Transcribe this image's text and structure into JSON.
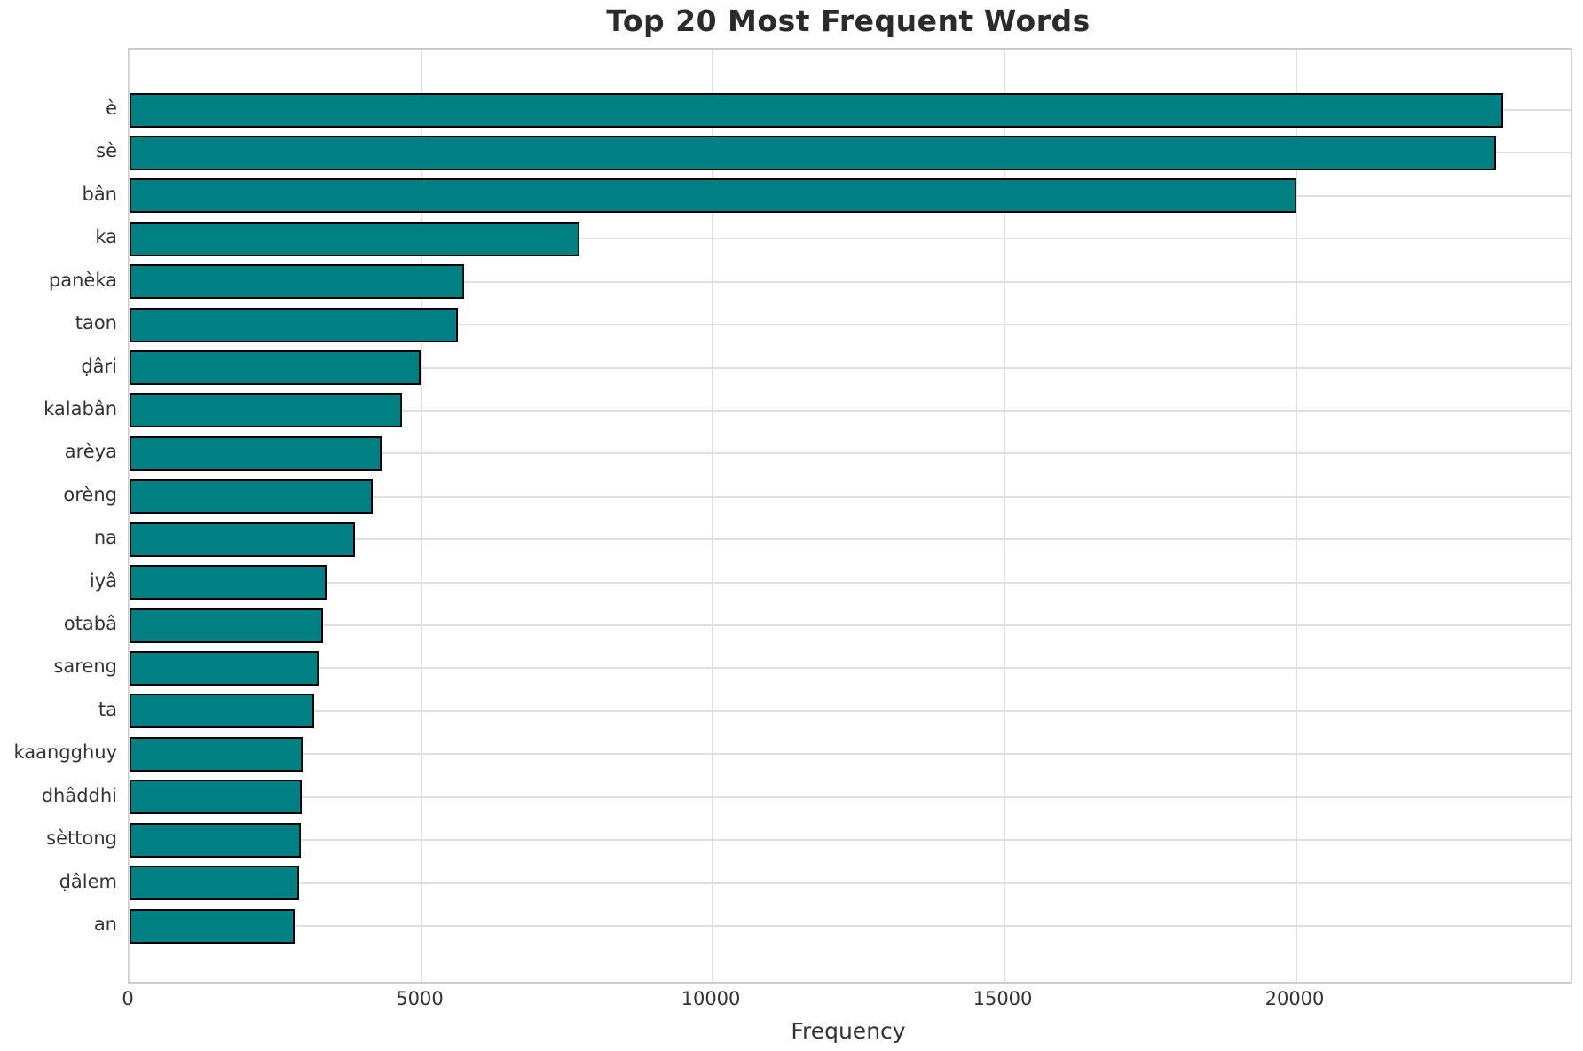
{
  "chart_data": {
    "type": "bar",
    "orientation": "horizontal",
    "title": "Top 20 Most Frequent Words",
    "xlabel": "Frequency",
    "ylabel": "",
    "categories": [
      "è",
      "sè",
      "bân",
      "ka",
      "panèka",
      "taon",
      "ḍâri",
      "kalabân",
      "arèya",
      "orèng",
      "na",
      "iyâ",
      "otabâ",
      "sareng",
      "ta",
      "kaangghuy",
      "dhâddhi",
      "sèttong",
      "ḍâlem",
      "an"
    ],
    "values": [
      23550,
      23420,
      20000,
      7710,
      5730,
      5630,
      4990,
      4670,
      4320,
      4170,
      3860,
      3380,
      3320,
      3240,
      3160,
      2960,
      2950,
      2930,
      2900,
      2830
    ],
    "xticks": [
      0,
      5000,
      10000,
      15000,
      20000
    ],
    "xtick_labels": [
      "0",
      "5000",
      "10000",
      "15000",
      "20000"
    ],
    "xlim": [
      0,
      24700
    ],
    "grid": true,
    "legend": false,
    "colors": {
      "bar_fill": "#008083",
      "bar_edge": "#000000",
      "grid_line": "#e0e0e0",
      "plot_border": "#cccccc",
      "tick_text": "#333333",
      "title_text": "#2b2b2b",
      "background": "#ffffff"
    }
  }
}
